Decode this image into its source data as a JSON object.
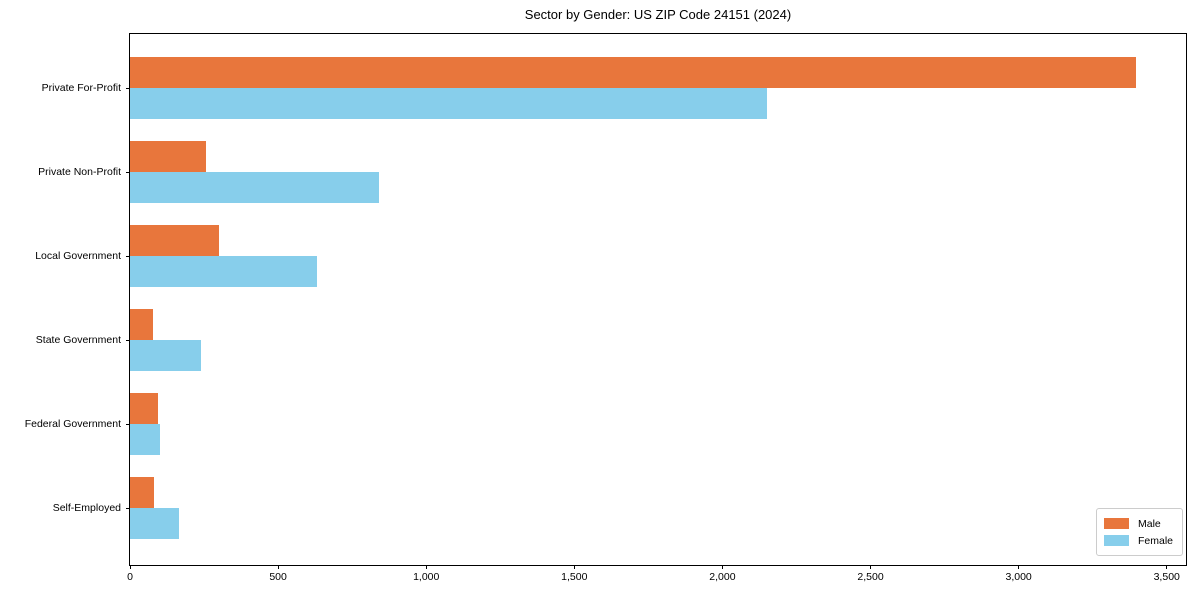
{
  "chart_data": {
    "type": "bar",
    "orientation": "horizontal",
    "title": "Sector by Gender: US ZIP Code 24151 (2024)",
    "categories": [
      "Private For-Profit",
      "Private Non-Profit",
      "Local Government",
      "State Government",
      "Federal Government",
      "Self-Employed"
    ],
    "series": [
      {
        "name": "Male",
        "color": "#e8763c",
        "values": [
          3395,
          255,
          300,
          78,
          95,
          80
        ]
      },
      {
        "name": "Female",
        "color": "#87ceeb",
        "values": [
          2150,
          840,
          630,
          240,
          100,
          165
        ]
      }
    ],
    "xlabel": "",
    "ylabel": "",
    "xlim": [
      0,
      3565
    ],
    "xticks": [
      0,
      500,
      1000,
      1500,
      2000,
      2500,
      3000,
      3500
    ],
    "xtick_labels": [
      "0",
      "500",
      "1,000",
      "1,500",
      "2,000",
      "2,500",
      "3,000",
      "3,500"
    ],
    "grid": false,
    "legend": {
      "position": "lower right"
    },
    "colors": {
      "axis": "#000000",
      "background": "#ffffff",
      "legend_border": "#cccccc"
    }
  }
}
